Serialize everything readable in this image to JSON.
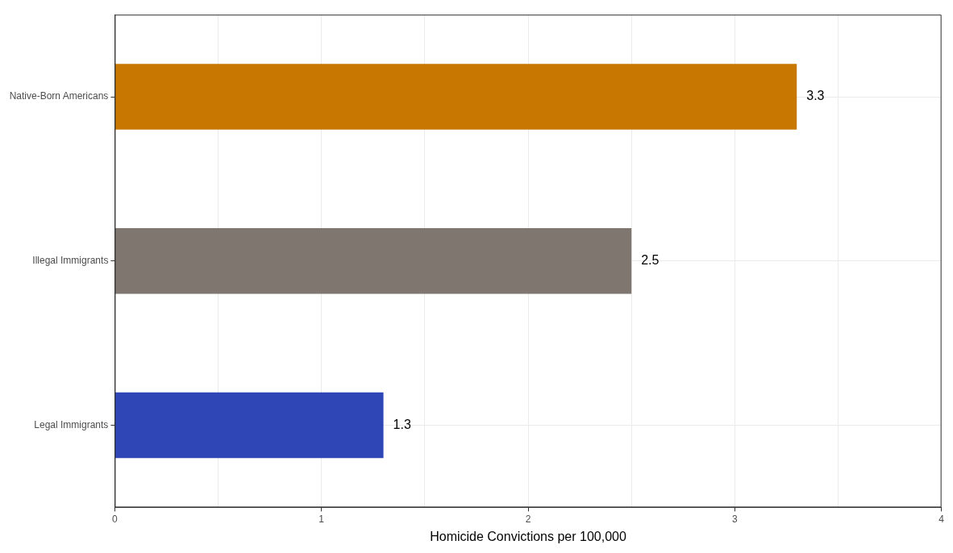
{
  "chart_data": {
    "type": "bar",
    "orientation": "horizontal",
    "xlabel": "Homicide Convictions per 100,000",
    "categories": [
      "Native-Born Americans",
      "Illegal Immigrants",
      "Legal Immigrants"
    ],
    "values": [
      3.3,
      2.5,
      1.3
    ],
    "colors": [
      "#c87800",
      "#7f776f",
      "#2f47b6"
    ],
    "xlim": [
      0,
      4
    ],
    "xticks": [
      0,
      {
        "value": 0.5,
        "label": null
      },
      1,
      {
        "value": 1.5,
        "label": null
      },
      2,
      {
        "value": 2.5,
        "label": null
      },
      3,
      {
        "value": 3.5,
        "label": null
      },
      4
    ],
    "grid": true,
    "data_labels": true,
    "legend": false
  }
}
